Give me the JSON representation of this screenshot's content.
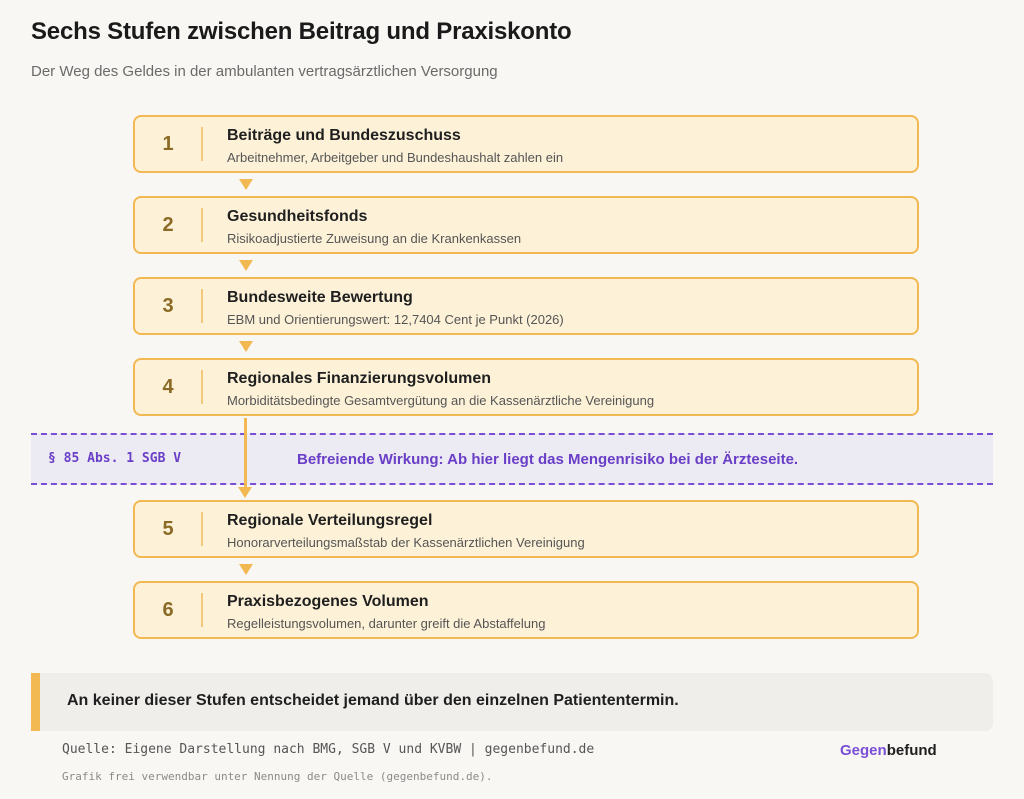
{
  "header": {
    "title": "Sechs Stufen zwischen Beitrag und Praxiskonto",
    "subtitle": "Der Weg des Geldes in der ambulanten vertragsärztlichen Versorgung"
  },
  "steps": [
    {
      "number": "1",
      "title": "Beiträge und Bundeszuschuss",
      "description": "Arbeitnehmer, Arbeitgeber und Bundeshaushalt zahlen ein"
    },
    {
      "number": "2",
      "title": "Gesundheitsfonds",
      "description": "Risikoadjustierte Zuweisung an die Krankenkassen"
    },
    {
      "number": "3",
      "title": "Bundesweite Bewertung",
      "description": "EBM und Orientierungswert: 12,7404 Cent je Punkt (2026)"
    },
    {
      "number": "4",
      "title": "Regionales Finanzierungsvolumen",
      "description": "Morbiditätsbedingte Gesamtvergütung an die Kassenärztliche Vereinigung"
    },
    {
      "number": "5",
      "title": "Regionale Verteilungsregel",
      "description": "Honorarverteilungsmaßstab der Kassenärztlichen Vereinigung"
    },
    {
      "number": "6",
      "title": "Praxisbezogenes Volumen",
      "description": "Regelleistungsvolumen, darunter greift die Abstaffelung"
    }
  ],
  "band": {
    "reference": "§ 85 Abs. 1 SGB V",
    "text": "Befreiende Wirkung: Ab hier liegt das Mengenrisiko bei der Ärzteseite."
  },
  "callout": {
    "text": "An keiner dieser Stufen entscheidet jemand über den einzelnen Patiententermin."
  },
  "footer": {
    "source": "Quelle: Eigene Darstellung nach BMG, SGB V und KVBW | gegenbefund.de",
    "license": "Grafik frei verwendbar unter Nennung der Quelle (gegenbefund.de).",
    "brand_part1": "Gegen",
    "brand_part2": "befund"
  },
  "colors": {
    "accent": "#f2b851",
    "step_fill": "#fdf2d8",
    "purple": "#7a4fd6"
  }
}
